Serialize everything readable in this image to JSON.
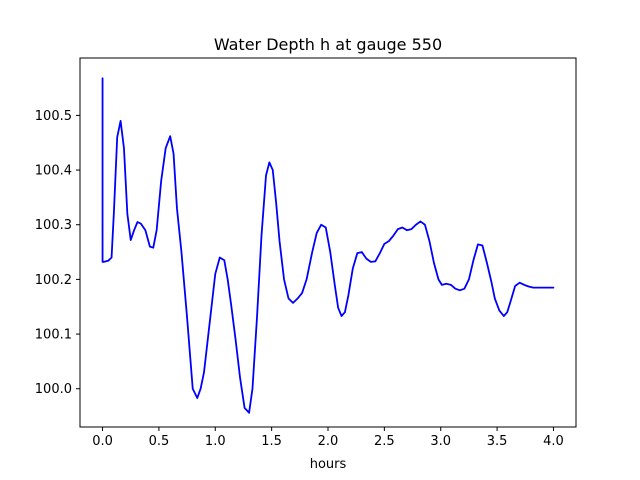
{
  "chart_data": {
    "type": "line",
    "title": "Water Depth h at gauge 550",
    "xlabel": "hours",
    "ylabel": "",
    "xlim": [
      -0.2,
      4.2
    ],
    "ylim": [
      99.93,
      100.605
    ],
    "xticks": [
      0.0,
      0.5,
      1.0,
      1.5,
      2.0,
      2.5,
      3.0,
      3.5,
      4.0
    ],
    "xtick_labels": [
      "0.0",
      "0.5",
      "1.0",
      "1.5",
      "2.0",
      "2.5",
      "3.0",
      "3.5",
      "4.0"
    ],
    "yticks": [
      100.0,
      100.1,
      100.2,
      100.3,
      100.4,
      100.5
    ],
    "ytick_labels": [
      "100.0",
      "100.1",
      "100.2",
      "100.3",
      "100.4",
      "100.5"
    ],
    "grid": false,
    "legend": "none",
    "series": [
      {
        "color": "#0000ff",
        "x": [
          0.0,
          0.0,
          0.01,
          0.05,
          0.08,
          0.1,
          0.13,
          0.16,
          0.19,
          0.22,
          0.25,
          0.28,
          0.31,
          0.34,
          0.38,
          0.42,
          0.45,
          0.48,
          0.52,
          0.56,
          0.6,
          0.63,
          0.66,
          0.7,
          0.75,
          0.8,
          0.84,
          0.87,
          0.9,
          0.95,
          1.0,
          1.04,
          1.08,
          1.11,
          1.14,
          1.18,
          1.22,
          1.26,
          1.3,
          1.33,
          1.37,
          1.41,
          1.45,
          1.48,
          1.51,
          1.54,
          1.57,
          1.61,
          1.65,
          1.69,
          1.73,
          1.77,
          1.81,
          1.86,
          1.9,
          1.94,
          1.98,
          2.02,
          2.06,
          2.09,
          2.12,
          2.15,
          2.18,
          2.22,
          2.26,
          2.3,
          2.34,
          2.38,
          2.42,
          2.46,
          2.5,
          2.54,
          2.58,
          2.62,
          2.66,
          2.7,
          2.74,
          2.78,
          2.82,
          2.86,
          2.9,
          2.94,
          2.98,
          3.01,
          3.05,
          3.09,
          3.13,
          3.17,
          3.21,
          3.25,
          3.29,
          3.33,
          3.37,
          3.41,
          3.45,
          3.48,
          3.52,
          3.56,
          3.59,
          3.62,
          3.66,
          3.7,
          3.74,
          3.78,
          3.82,
          3.85,
          3.88,
          3.91,
          3.95,
          4.0
        ],
        "y": [
          100.568,
          100.232,
          100.232,
          100.234,
          100.24,
          100.32,
          100.46,
          100.49,
          100.44,
          100.32,
          100.272,
          100.29,
          100.305,
          100.302,
          100.29,
          100.26,
          100.258,
          100.29,
          100.38,
          100.44,
          100.462,
          100.43,
          100.33,
          100.25,
          100.13,
          100.0,
          99.983,
          100.0,
          100.03,
          100.12,
          100.21,
          100.24,
          100.235,
          100.2,
          100.155,
          100.09,
          100.02,
          99.965,
          99.956,
          100.0,
          100.13,
          100.28,
          100.39,
          100.414,
          100.4,
          100.34,
          100.27,
          100.2,
          100.165,
          100.157,
          100.165,
          100.175,
          100.2,
          100.25,
          100.285,
          100.3,
          100.295,
          100.25,
          100.19,
          100.148,
          100.133,
          100.14,
          100.17,
          100.22,
          100.248,
          100.25,
          100.238,
          100.232,
          100.233,
          100.248,
          100.265,
          100.27,
          100.28,
          100.292,
          100.295,
          100.29,
          100.292,
          100.3,
          100.306,
          100.3,
          100.27,
          100.23,
          100.2,
          100.19,
          100.192,
          100.19,
          100.183,
          100.18,
          100.183,
          100.2,
          100.235,
          100.264,
          100.262,
          100.23,
          100.195,
          100.165,
          100.143,
          100.133,
          100.14,
          100.16,
          100.188,
          100.194,
          100.19,
          100.187,
          100.185,
          100.185,
          100.185,
          100.185,
          100.185,
          100.185
        ]
      }
    ]
  }
}
